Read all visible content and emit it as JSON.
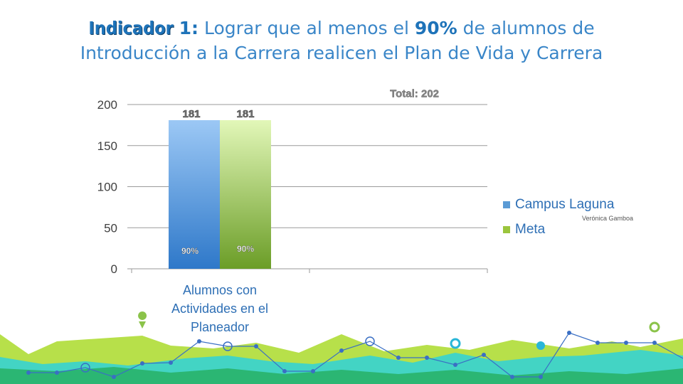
{
  "title": {
    "keyword": "Indicador",
    "number": "1:",
    "text_before": " Lograr que al menos el ",
    "percent": "90%",
    "text_after": " de alumnos de",
    "line2": "Introducción a la Carrera realicen el Plan de Vida y Carrera"
  },
  "total_label": "Total: 202",
  "presenter": "Verónica Gamboa",
  "colors": {
    "campus": "#5b9bd5",
    "meta": "#9bc53d",
    "accent": "#1e73b9"
  },
  "chart_data": {
    "type": "bar",
    "categories": [
      "Alumnos con Actividades en el Planeador"
    ],
    "category_lines": [
      "Alumnos con",
      "Actividades en el",
      "Planeador"
    ],
    "series": [
      {
        "name": "Campus Laguna",
        "values": [
          181
        ],
        "percent_label": "90%"
      },
      {
        "name": "Meta",
        "values": [
          181
        ],
        "percent_label": "90%"
      }
    ],
    "ylim": [
      0,
      200
    ],
    "yticks": [
      0,
      50,
      100,
      150,
      200
    ],
    "reference_line": {
      "value": 202,
      "label": "Total: 202"
    },
    "grid": true,
    "legend": "right"
  }
}
